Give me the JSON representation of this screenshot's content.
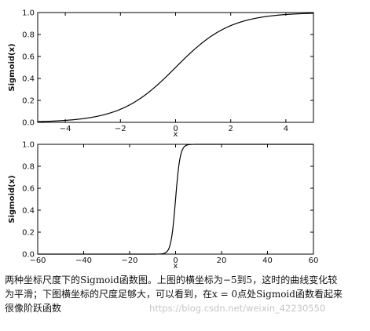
{
  "chart_data": [
    {
      "type": "line",
      "function": "sigmoid",
      "series": [
        {
          "x": [
            -5,
            -4,
            -3,
            -2,
            -1,
            0,
            1,
            2,
            3,
            4,
            5
          ],
          "y": [
            0.007,
            0.018,
            0.047,
            0.119,
            0.269,
            0.5,
            0.731,
            0.881,
            0.953,
            0.982,
            0.993
          ]
        }
      ],
      "xlabel": "x",
      "ylabel": "Sigmoid(x)",
      "xlim": [
        -5,
        5
      ],
      "ylim": [
        0.0,
        1.0
      ],
      "xticks": [
        "−4",
        "−2",
        "0",
        "2",
        "4"
      ],
      "yticks": [
        "0.0",
        "0.2",
        "0.4",
        "0.6",
        "0.8",
        "1.0"
      ],
      "grid": false,
      "line_color": "#000000"
    },
    {
      "type": "line",
      "function": "sigmoid",
      "series": [
        {
          "x": [
            -60,
            -10,
            -5,
            -3,
            -2,
            -1,
            0,
            1,
            2,
            3,
            5,
            10,
            60
          ],
          "y": [
            0.0,
            0.0,
            0.007,
            0.047,
            0.119,
            0.269,
            0.5,
            0.731,
            0.881,
            0.953,
            0.993,
            1.0,
            1.0
          ]
        }
      ],
      "xlabel": "x",
      "ylabel": "Sigmoid(x)",
      "xlim": [
        -60,
        60
      ],
      "ylim": [
        0.0,
        1.0
      ],
      "xticks": [
        "−60",
        "−40",
        "−20",
        "0",
        "20",
        "40",
        "60"
      ],
      "yticks": [
        "0.0",
        "0.2",
        "0.4",
        "0.6",
        "0.8",
        "1.0"
      ],
      "grid": false,
      "line_color": "#000000"
    }
  ],
  "caption": {
    "line1": "两种坐标尺度下的Sigmoid函数图。上图的横坐标为−5到5，这时的曲线变化较",
    "line2": "为平滑；下图横坐标的尺度足够大，可以看到，在x = 0点处Sigmoid函数看起来",
    "line3": "很像阶跃函数"
  },
  "watermark": "https://blog.csdn.net/weixin_42230550"
}
